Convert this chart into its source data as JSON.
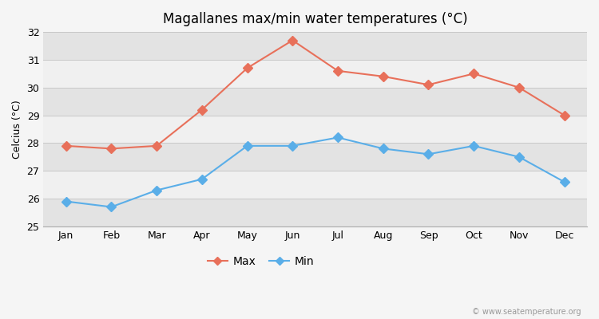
{
  "title": "Magallanes max/min water temperatures (°C)",
  "ylabel": "Celcius (°C)",
  "months": [
    "Jan",
    "Feb",
    "Mar",
    "Apr",
    "May",
    "Jun",
    "Jul",
    "Aug",
    "Sep",
    "Oct",
    "Nov",
    "Dec"
  ],
  "max_temps": [
    27.9,
    27.8,
    27.9,
    29.2,
    30.7,
    31.7,
    30.6,
    30.4,
    30.1,
    30.5,
    30.0,
    29.0
  ],
  "min_temps": [
    25.9,
    25.7,
    26.3,
    26.7,
    27.9,
    27.9,
    28.2,
    27.8,
    27.6,
    27.9,
    27.5,
    26.6
  ],
  "max_color": "#e8705a",
  "min_color": "#5aaee8",
  "ylim": [
    25,
    32
  ],
  "yticks": [
    25,
    26,
    27,
    28,
    29,
    30,
    31,
    32
  ],
  "bg_color": "#f5f5f5",
  "band_light": "#f0f0f0",
  "band_dark": "#e3e3e3",
  "grid_color": "#d8d8d8",
  "marker": "D",
  "marker_size": 6,
  "line_width": 1.5,
  "legend_labels": [
    "Max",
    "Min"
  ],
  "watermark": "© www.seatemperature.org",
  "title_fontsize": 12,
  "label_fontsize": 9,
  "ylabel_fontsize": 9
}
